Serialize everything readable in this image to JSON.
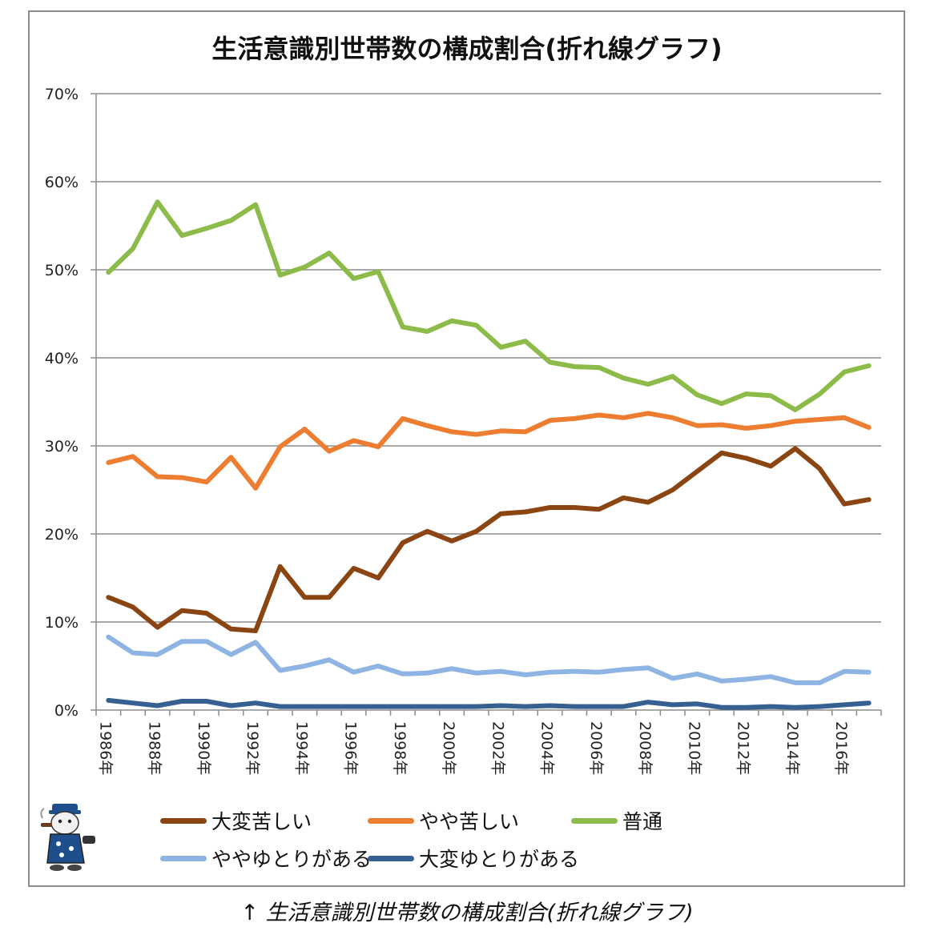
{
  "caption": {
    "arrow": "↑",
    "text": "生活意識別世帯数の構成割合(折れ線グラフ)"
  },
  "chart_data": {
    "type": "line",
    "title": "生活意識別世帯数の構成割合(折れ線グラフ)",
    "xlabel": "",
    "ylabel": "",
    "ylim": [
      0,
      70
    ],
    "yticks": [
      0,
      10,
      20,
      30,
      40,
      50,
      60,
      70
    ],
    "ytick_labels": [
      "0%",
      "10%",
      "20%",
      "30%",
      "40%",
      "50%",
      "60%",
      "70%"
    ],
    "grid": true,
    "legend": "bottom",
    "x": [
      1986,
      1987,
      1988,
      1989,
      1990,
      1991,
      1992,
      1993,
      1994,
      1995,
      1996,
      1997,
      1998,
      1999,
      2000,
      2001,
      2002,
      2003,
      2004,
      2005,
      2006,
      2007,
      2008,
      2009,
      2010,
      2011,
      2012,
      2013,
      2014,
      2015,
      2016,
      2017
    ],
    "xtick_labels": [
      "1986年",
      "1988年",
      "1990年",
      "1992年",
      "1994年",
      "1996年",
      "1998年",
      "2000年",
      "2002年",
      "2004年",
      "2006年",
      "2008年",
      "2010年",
      "2012年",
      "2014年",
      "2016年"
    ],
    "series": [
      {
        "name": "大変苦しい",
        "color": "#8B4513",
        "values": [
          12.8,
          11.7,
          9.4,
          11.3,
          11.0,
          9.2,
          9.0,
          16.3,
          12.8,
          12.8,
          16.1,
          15.0,
          19.0,
          20.3,
          19.2,
          20.3,
          22.3,
          22.5,
          23.0,
          23.0,
          22.8,
          24.1,
          23.6,
          25.0,
          27.1,
          29.2,
          28.6,
          27.7,
          29.7,
          27.4,
          23.4,
          23.9
        ]
      },
      {
        "name": "やや苦しい",
        "color": "#ED7D31",
        "values": [
          28.1,
          28.8,
          26.5,
          26.4,
          25.9,
          28.7,
          25.2,
          29.9,
          31.9,
          29.4,
          30.6,
          29.9,
          33.1,
          32.3,
          31.6,
          31.3,
          31.7,
          31.6,
          32.9,
          33.1,
          33.5,
          33.2,
          33.7,
          33.2,
          32.3,
          32.4,
          32.0,
          32.3,
          32.8,
          33.0,
          33.2,
          32.1
        ]
      },
      {
        "name": "普通",
        "color": "#8DBB4A",
        "values": [
          49.7,
          52.4,
          57.7,
          53.9,
          54.7,
          55.6,
          57.4,
          49.4,
          50.3,
          51.9,
          49.0,
          49.8,
          43.5,
          43.0,
          44.2,
          43.7,
          41.2,
          41.9,
          39.5,
          39.0,
          38.9,
          37.7,
          37.0,
          37.9,
          35.8,
          34.8,
          35.9,
          35.7,
          34.1,
          35.9,
          38.4,
          39.1
        ]
      },
      {
        "name": "ややゆとりがある",
        "color": "#8DB4E2",
        "values": [
          8.3,
          6.5,
          6.3,
          7.8,
          7.8,
          6.3,
          7.7,
          4.5,
          5.0,
          5.7,
          4.3,
          5.0,
          4.1,
          4.2,
          4.7,
          4.2,
          4.4,
          4.0,
          4.3,
          4.4,
          4.3,
          4.6,
          4.8,
          3.6,
          4.1,
          3.3,
          3.5,
          3.8,
          3.1,
          3.1,
          4.4,
          4.3
        ]
      },
      {
        "name": "大変ゆとりがある",
        "color": "#366092",
        "values": [
          1.1,
          0.8,
          0.5,
          1.0,
          1.0,
          0.5,
          0.8,
          0.4,
          0.4,
          0.4,
          0.4,
          0.4,
          0.4,
          0.4,
          0.4,
          0.4,
          0.5,
          0.4,
          0.5,
          0.4,
          0.4,
          0.4,
          0.9,
          0.6,
          0.7,
          0.3,
          0.3,
          0.4,
          0.3,
          0.4,
          0.6,
          0.8
        ]
      }
    ]
  }
}
